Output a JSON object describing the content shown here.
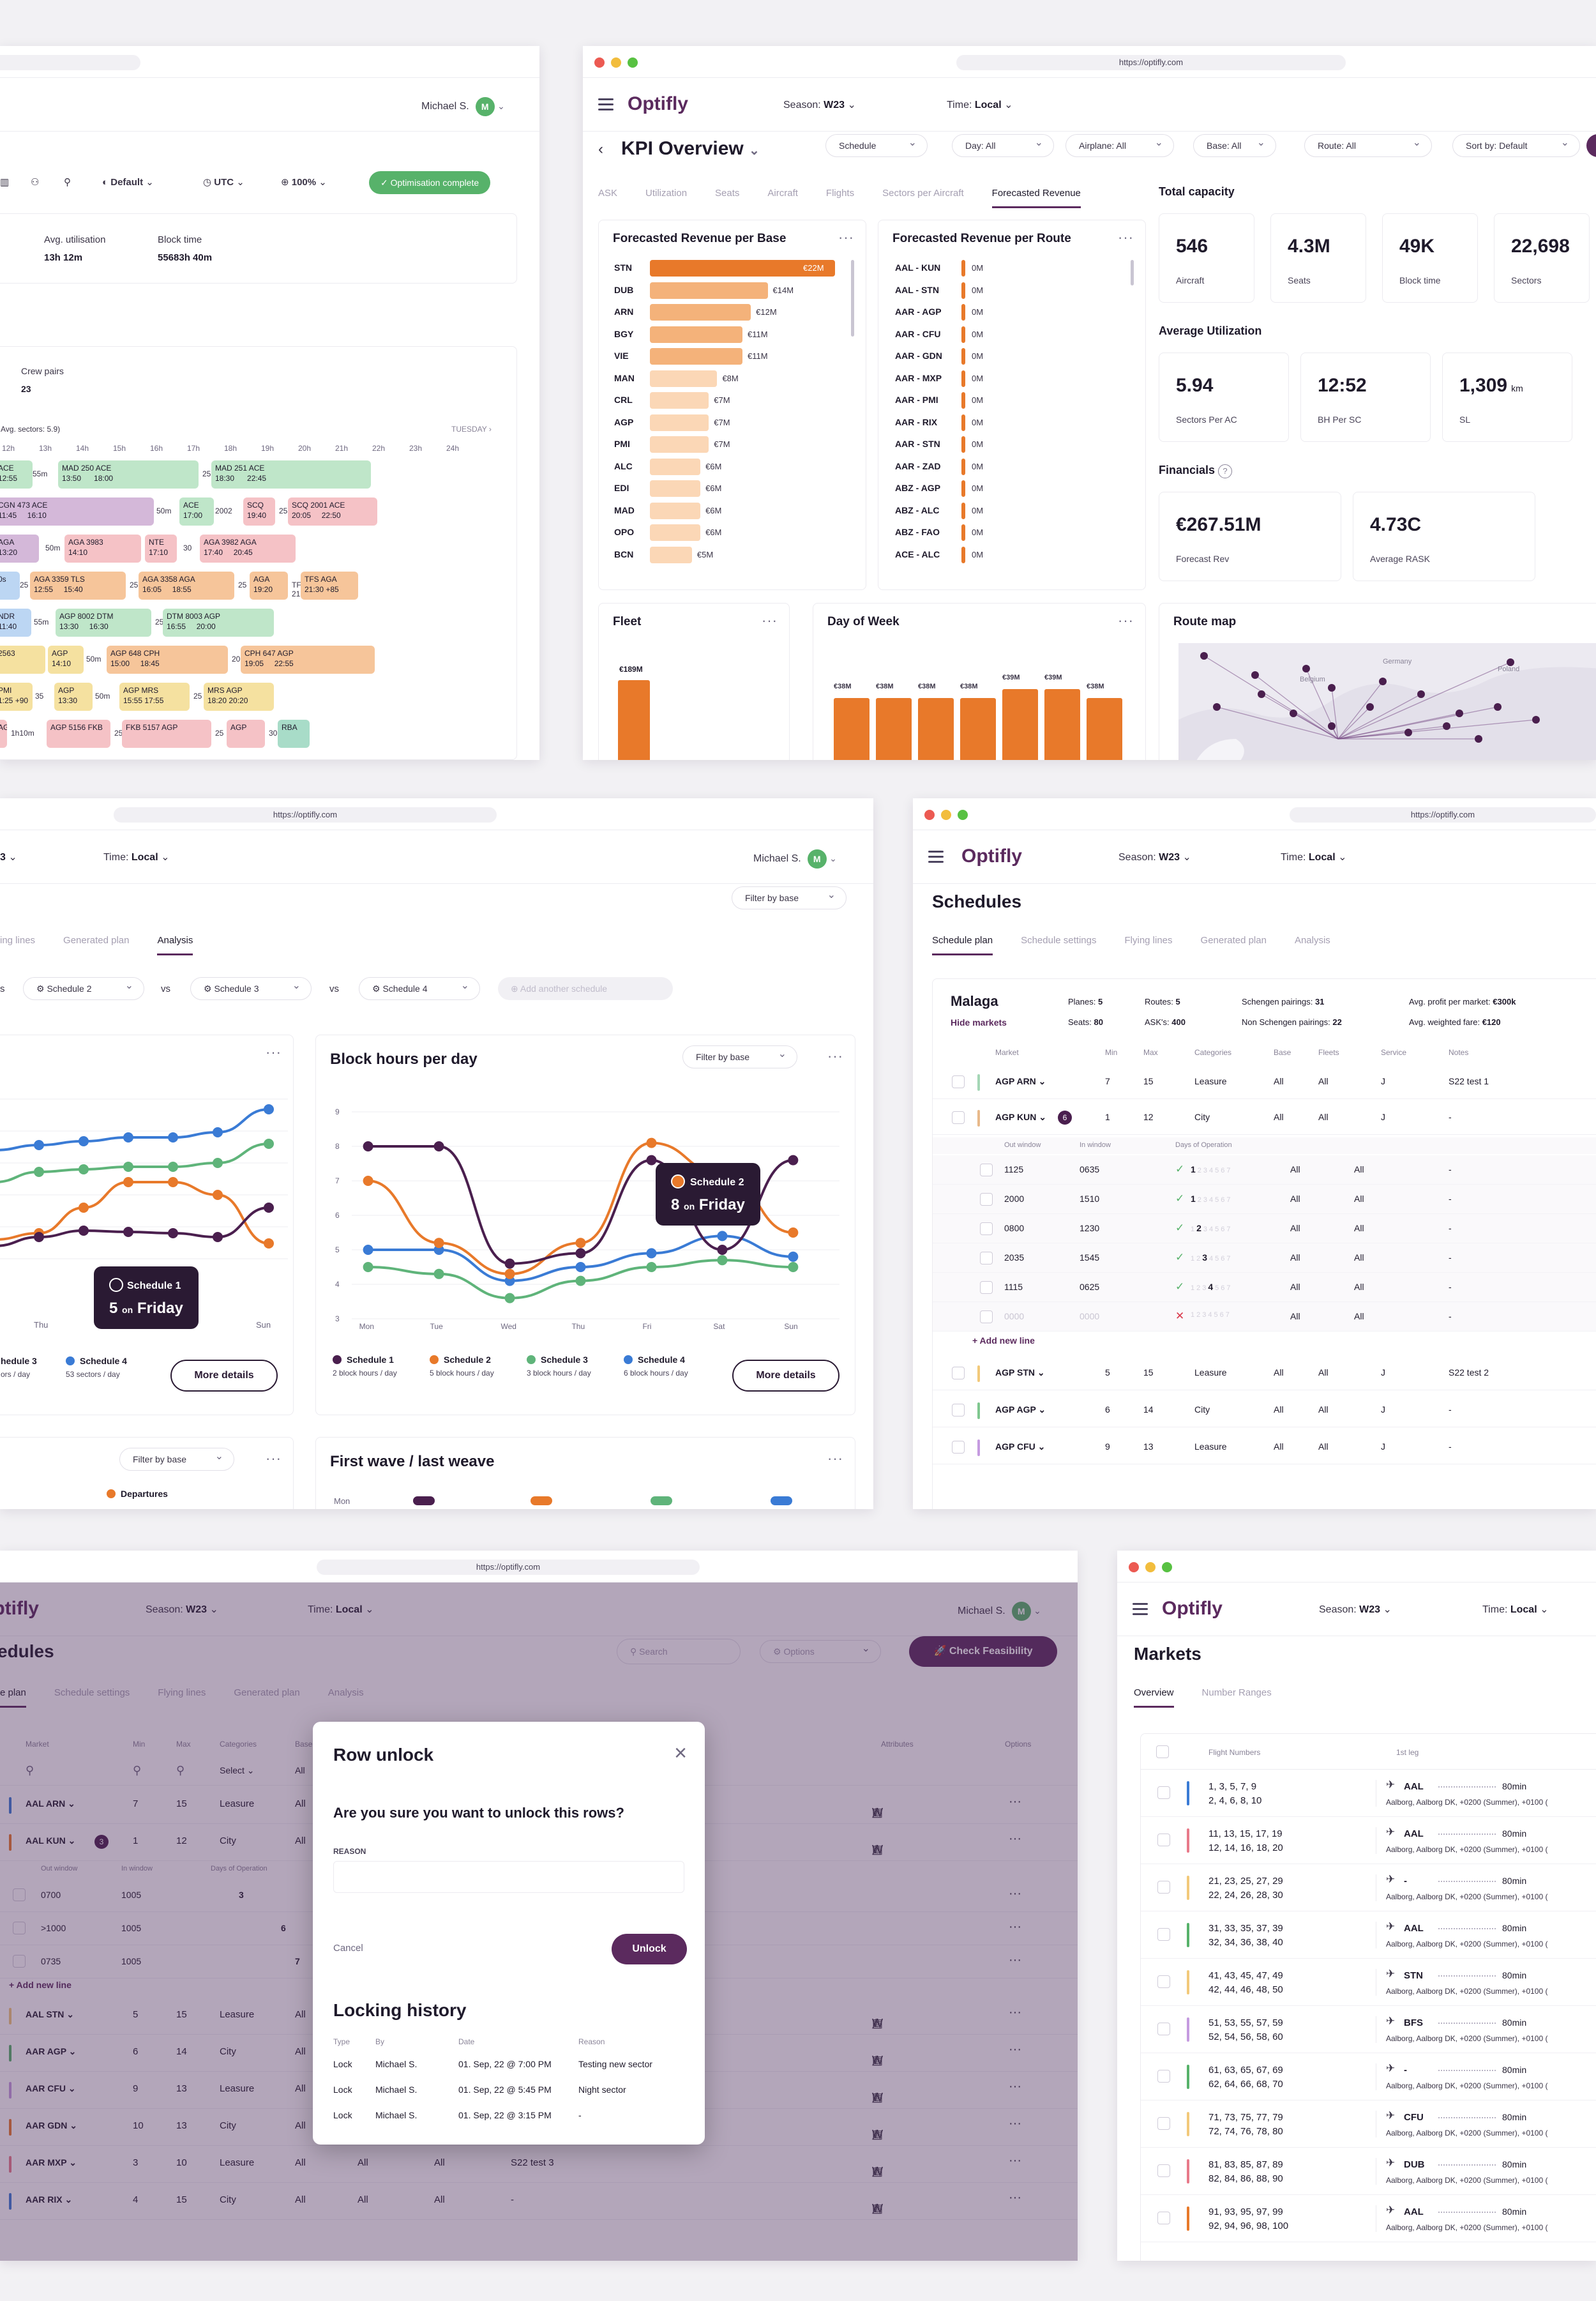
{
  "brand": {
    "logo": "Optifly",
    "url": "https://optifly.com",
    "primary": "#5b2a5e",
    "accent": "#e8792a",
    "green": "#57b26a"
  },
  "user": {
    "name": "Michael S.",
    "initial": "M"
  },
  "header": {
    "season_label": "Season:",
    "season": "W23",
    "time_label": "Time:",
    "time": "Local"
  },
  "gantt": {
    "toolbar": {
      "default": "Default",
      "utc": "UTC",
      "zoom": "100%",
      "status": "Optimisation complete"
    },
    "stats": [
      {
        "label": "Avg. utilisation",
        "value": "13h 12m"
      },
      {
        "label": "Block time",
        "value": "55683h 40m"
      }
    ],
    "crew": {
      "label": "Crew pairs",
      "value": "23"
    },
    "avg_sectors": "Avg. sectors: 5.9)",
    "day": "TUESDAY",
    "hours": [
      "12h",
      "13h",
      "14h",
      "15h",
      "16h",
      "17h",
      "18h",
      "19h",
      "20h",
      "21h",
      "22h",
      "23h",
      "24h"
    ]
  },
  "kpi": {
    "title": "KPI Overview",
    "filters": [
      "Schedule",
      "Day: All",
      "Airplane: All",
      "Base: All",
      "Route: All",
      "Sort by: Default"
    ],
    "tabs": [
      "ASK",
      "Utilization",
      "Seats",
      "Aircraft",
      "Flights",
      "Sectors per Aircraft",
      "Forecasted Revenue"
    ],
    "rev_base": {
      "title": "Forecasted Revenue per Base",
      "rows": [
        {
          "l": "STN",
          "v": "€22M",
          "n": 22
        },
        {
          "l": "DUB",
          "v": "€14M",
          "n": 14
        },
        {
          "l": "ARN",
          "v": "€12M",
          "n": 12
        },
        {
          "l": "BGY",
          "v": "€11M",
          "n": 11
        },
        {
          "l": "VIE",
          "v": "€11M",
          "n": 11
        },
        {
          "l": "MAN",
          "v": "€8M",
          "n": 8
        },
        {
          "l": "CRL",
          "v": "€7M",
          "n": 7
        },
        {
          "l": "AGP",
          "v": "€7M",
          "n": 7
        },
        {
          "l": "PMI",
          "v": "€7M",
          "n": 7
        },
        {
          "l": "ALC",
          "v": "€6M",
          "n": 6
        },
        {
          "l": "EDI",
          "v": "€6M",
          "n": 6
        },
        {
          "l": "MAD",
          "v": "€6M",
          "n": 6
        },
        {
          "l": "OPO",
          "v": "€6M",
          "n": 6
        },
        {
          "l": "BCN",
          "v": "€5M",
          "n": 5
        }
      ]
    },
    "rev_route": {
      "title": "Forecasted Revenue per Route",
      "rows": [
        "AAL - KUN",
        "AAL - STN",
        "AAR - AGP",
        "AAR - CFU",
        "AAR - GDN",
        "AAR - MXP",
        "AAR - PMI",
        "AAR - RIX",
        "AAR - STN",
        "AAR - ZAD",
        "ABZ - AGP",
        "ABZ - ALC",
        "ABZ - FAO",
        "ACE - ALC"
      ],
      "value": "0M"
    },
    "total_capacity": {
      "title": "Total capacity",
      "items": [
        {
          "v": "546",
          "l": "Aircraft"
        },
        {
          "v": "4.3M",
          "l": "Seats"
        },
        {
          "v": "49K",
          "l": "Block time"
        },
        {
          "v": "22,698",
          "l": "Sectors"
        }
      ]
    },
    "avg_util": {
      "title": "Average Utilization",
      "items": [
        {
          "v": "5.94",
          "l": "Sectors Per AC"
        },
        {
          "v": "12:52",
          "l": "BH Per SC"
        },
        {
          "v": "1,309",
          "u": "km",
          "l": "SL"
        }
      ]
    },
    "financials": {
      "title": "Financials",
      "items": [
        {
          "v": "€267.51M",
          "l": "Forecast Rev"
        },
        {
          "v": "4.73C",
          "l": "Average RASK"
        }
      ]
    },
    "fleet": {
      "title": "Fleet",
      "label": "€189M"
    },
    "dow": {
      "title": "Day of Week",
      "labels": [
        "€38M",
        "€38M",
        "€38M",
        "€38M",
        "€39M",
        "€39M",
        "€38M"
      ],
      "values": [
        38,
        38,
        38,
        38,
        39,
        39,
        38
      ]
    },
    "map": {
      "title": "Route map",
      "countries": [
        "Germany",
        "Poland",
        "Belgium"
      ]
    }
  },
  "analysis": {
    "tabs": [
      "ing lines",
      "Generated plan",
      "Analysis"
    ],
    "filter": "Filter by base",
    "compare": [
      "Schedule 2",
      "Schedule 3",
      "Schedule 4"
    ],
    "vs": "vs",
    "add": "Add another schedule",
    "left_tooltip": {
      "name": "Schedule 1",
      "value": "5",
      "on": "on",
      "day": "Friday"
    },
    "left_days": [
      "Thu",
      "Sun"
    ],
    "left_legend": [
      {
        "name": "hedule 3",
        "sub": "ors / day"
      },
      {
        "name": "Schedule 4",
        "sub": "53 sectors / day"
      }
    ],
    "more": "More details",
    "block": {
      "title": "Block hours per day",
      "filter": "Filter by base",
      "yticks": [
        "9",
        "8",
        "7",
        "6",
        "5",
        "4",
        "3"
      ],
      "days": [
        "Mon",
        "Tue",
        "Wed",
        "Thu",
        "Fri",
        "Sat",
        "Sun"
      ],
      "tooltip": {
        "name": "Schedule 2",
        "value": "8",
        "on": "on",
        "day": "Friday"
      },
      "legend": [
        {
          "name": "Schedule 1",
          "sub": "2 block hours / day",
          "c": "#4a1f4e"
        },
        {
          "name": "Schedule 2",
          "sub": "5 block hours / day",
          "c": "#e8792a"
        },
        {
          "name": "Schedule 3",
          "sub": "3 block hours / day",
          "c": "#5fb47a"
        },
        {
          "name": "Schedule 4",
          "sub": "6 block hours / day",
          "c": "#3a7bd5"
        }
      ]
    },
    "bottom_left": {
      "filter": "Filter by base",
      "legend": "Departures"
    },
    "wave": {
      "title": "First wave / last weave",
      "first": "Mon"
    }
  },
  "schedules": {
    "title": "Schedules",
    "tabs": [
      "Schedule plan",
      "Schedule settings",
      "Flying lines",
      "Generated plan",
      "Analysis"
    ],
    "base": {
      "name": "Malaga",
      "hide": "Hide markets",
      "planes": "Planes:",
      "planes_v": "5",
      "routes": "Routes:",
      "routes_v": "5",
      "seats": "Seats:",
      "seats_v": "80",
      "asks": "ASK's:",
      "asks_v": "400",
      "sch": "Schengen pairings:",
      "sch_v": "31",
      "nsch": "Non Schengen pairings:",
      "nsch_v": "22",
      "avgp": "Avg. profit per market:",
      "avgp_v": "€300k",
      "avgf": "Avg. weighted fare:",
      "avgf_v": "€120"
    },
    "cols": [
      "Market",
      "Min",
      "Max",
      "Categories",
      "Base",
      "Fleets",
      "Service",
      "Notes"
    ],
    "subcols": [
      "Out window",
      "In window",
      "Days of Operation"
    ],
    "rows": [
      {
        "m": "AGP ARN",
        "min": "7",
        "max": "15",
        "cat": "Leasure",
        "base": "All",
        "fleet": "All",
        "svc": "J",
        "note": "S22 test 1",
        "c": "#a4d6b5"
      },
      {
        "m": "AGP KUN",
        "min": "1",
        "max": "12",
        "cat": "City",
        "base": "All",
        "fleet": "All",
        "svc": "J",
        "note": "-",
        "c": "#e8b98a",
        "badge": "6"
      }
    ],
    "subrows": [
      {
        "o": "1125",
        "i": "0635",
        "d": "1"
      },
      {
        "o": "2000",
        "i": "1510",
        "d": "1"
      },
      {
        "o": "0800",
        "i": "1230",
        "d": "2"
      },
      {
        "o": "2035",
        "i": "1545",
        "d": "3"
      },
      {
        "o": "1115",
        "i": "0625",
        "d": "4"
      },
      {
        "o": "0000",
        "i": "0000",
        "d": "x"
      }
    ],
    "add_line": "+ Add new line",
    "rows2": [
      {
        "m": "AGP STN",
        "min": "5",
        "max": "15",
        "cat": "Leasure",
        "base": "All",
        "fleet": "All",
        "svc": "J",
        "note": "S22 test 2",
        "c": "#f2c97a"
      },
      {
        "m": "AGP AGP",
        "min": "6",
        "max": "14",
        "cat": "City",
        "base": "All",
        "fleet": "All",
        "svc": "J",
        "note": "-",
        "c": "#7fc78f"
      },
      {
        "m": "AGP CFU",
        "min": "9",
        "max": "13",
        "cat": "Leasure",
        "base": "All",
        "fleet": "All",
        "svc": "J",
        "note": "-",
        "c": "#c59be0"
      }
    ]
  },
  "unlock": {
    "bg_title": "edules",
    "search": "Search",
    "options": "Options",
    "check": "Check Feasibility",
    "tabs": [
      "e plan",
      "Schedule settings",
      "Flying lines",
      "Generated plan",
      "Analysis"
    ],
    "cols": [
      "Market",
      "Min",
      "Max",
      "Categories",
      "Base",
      "Attributes",
      "Options"
    ],
    "select": "Select",
    "rows": [
      {
        "m": "AAL ARN",
        "min": "7",
        "max": "15",
        "cat": "Leasure",
        "base": "All",
        "c": "#3a7bd5"
      },
      {
        "m": "AAL KUN",
        "min": "1",
        "max": "12",
        "cat": "City",
        "base": "All",
        "c": "#e8792a",
        "badge": "3"
      }
    ],
    "subcols": [
      "Out window",
      "In window",
      "Days of Operation"
    ],
    "subrows": [
      {
        "o": "0700",
        "i": "1005",
        "d": "3"
      },
      {
        "o": ">1000",
        "i": "1005",
        "d": "6"
      },
      {
        "o": "0735",
        "i": "1005",
        "d": "7"
      }
    ],
    "add_line": "+ Add new line",
    "rows2": [
      {
        "m": "AAL STN",
        "min": "5",
        "max": "15",
        "cat": "Leasure",
        "base": "All",
        "c": "#f2c97a"
      },
      {
        "m": "AAR AGP",
        "min": "6",
        "max": "14",
        "cat": "City",
        "base": "All",
        "c": "#57b26a"
      },
      {
        "m": "AAR CFU",
        "min": "9",
        "max": "13",
        "cat": "Leasure",
        "base": "All",
        "c": "#c59be0"
      },
      {
        "m": "AAR GDN",
        "min": "10",
        "max": "13",
        "cat": "City",
        "base": "All",
        "c": "#e8792a"
      },
      {
        "m": "AAR MXP",
        "min": "3",
        "max": "10",
        "cat": "Leasure",
        "base": "All",
        "c": "#e87a8a",
        "note": "S22 test 3"
      },
      {
        "m": "AAR RIX",
        "min": "4",
        "max": "15",
        "cat": "City",
        "base": "All",
        "c": "#3a7bd5"
      }
    ],
    "modal": {
      "title": "Row unlock",
      "question": "Are you sure you want to unlock this rows?",
      "reason": "REASON",
      "cancel": "Cancel",
      "unlock": "Unlock",
      "history": "Locking history",
      "hcols": [
        "Type",
        "By",
        "Date",
        "Reason"
      ],
      "hrows": [
        {
          "t": "Lock",
          "b": "Michael S.",
          "d": "01. Sep, 22 @ 7:00 PM",
          "r": "Testing new sector"
        },
        {
          "t": "Lock",
          "b": "Michael S.",
          "d": "01. Sep, 22 @ 5:45 PM",
          "r": "Night sector"
        },
        {
          "t": "Lock",
          "b": "Michael S.",
          "d": "01. Sep, 22 @ 3:15 PM",
          "r": "-"
        }
      ]
    }
  },
  "markets": {
    "title": "Markets",
    "tabs": [
      "Overview",
      "Number Ranges"
    ],
    "cols": [
      "Flight Numbers",
      "1st leg"
    ],
    "rows": [
      {
        "n1": "1, 3, 5, 7, 9",
        "n2": "2, 4, 6, 8, 10",
        "leg": "AAL",
        "t": "80min",
        "sub": "Aalborg, Aalborg DK, +0200 (Summer), +0100 (",
        "c": "#3a7bd5"
      },
      {
        "n1": "11, 13, 15, 17, 19",
        "n2": "12, 14, 16, 18, 20",
        "leg": "AAL",
        "t": "80min",
        "sub": "Aalborg, Aalborg DK, +0200 (Summer), +0100 (",
        "c": "#e87a8a"
      },
      {
        "n1": "21, 23, 25, 27, 29",
        "n2": "22, 24, 26, 28, 30",
        "leg": "-",
        "t": "80min",
        "sub": "Aalborg, Aalborg DK, +0200 (Summer), +0100 (",
        "c": "#f2c97a"
      },
      {
        "n1": "31, 33, 35, 37, 39",
        "n2": "32, 34, 36, 38, 40",
        "leg": "AAL",
        "t": "80min",
        "sub": "Aalborg, Aalborg DK, +0200 (Summer), +0100 (",
        "c": "#57b26a"
      },
      {
        "n1": "41, 43, 45, 47, 49",
        "n2": "42, 44, 46, 48, 50",
        "leg": "STN",
        "t": "80min",
        "sub": "Aalborg, Aalborg DK, +0200 (Summer), +0100 (",
        "c": "#f2c97a"
      },
      {
        "n1": "51, 53, 55, 57, 59",
        "n2": "52, 54, 56, 58, 60",
        "leg": "BFS",
        "t": "80min",
        "sub": "Aalborg, Aalborg DK, +0200 (Summer), +0100 (",
        "c": "#c59be0"
      },
      {
        "n1": "61, 63, 65, 67, 69",
        "n2": "62, 64, 66, 68, 70",
        "leg": "-",
        "t": "80min",
        "sub": "Aalborg, Aalborg DK, +0200 (Summer), +0100 (",
        "c": "#57b26a"
      },
      {
        "n1": "71, 73, 75, 77, 79",
        "n2": "72, 74, 76, 78, 80",
        "leg": "CFU",
        "t": "80min",
        "sub": "Aalborg, Aalborg DK, +0200 (Summer), +0100 (",
        "c": "#f2c97a"
      },
      {
        "n1": "81, 83, 85, 87, 89",
        "n2": "82, 84, 86, 88, 90",
        "leg": "DUB",
        "t": "80min",
        "sub": "Aalborg, Aalborg DK, +0200 (Summer), +0100 (",
        "c": "#e87a8a"
      },
      {
        "n1": "91, 93, 95, 97, 99",
        "n2": "92, 94, 96, 98, 100",
        "leg": "AAL",
        "t": "80min",
        "sub": "Aalborg, Aalborg DK, +0200 (Summer), +0100 (",
        "c": "#e8792a"
      }
    ]
  }
}
